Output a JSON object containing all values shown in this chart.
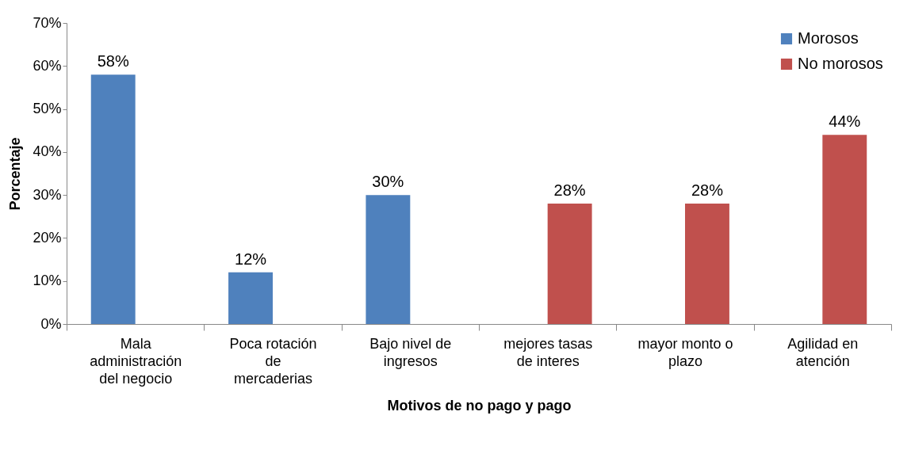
{
  "chart_data": {
    "type": "bar",
    "xlabel": "Motivos de no pago y pago",
    "ylabel": "Porcentaje",
    "categories": [
      "Mala administración del negocio",
      "Poca rotación de mercaderias",
      "Bajo nivel de ingresos",
      "mejores tasas de interes",
      "mayor monto o plazo",
      "Agilidad en atención"
    ],
    "series": [
      {
        "name": "Morosos",
        "color": "#4f81bd",
        "values": [
          58,
          12,
          30,
          null,
          null,
          null
        ],
        "value_labels": [
          "58%",
          "12%",
          "30%",
          null,
          null,
          null
        ]
      },
      {
        "name": "No morosos",
        "color": "#c0504d",
        "values": [
          null,
          null,
          null,
          28,
          28,
          44
        ],
        "value_labels": [
          null,
          null,
          null,
          "28%",
          "28%",
          "44%"
        ]
      }
    ],
    "ylim": [
      0,
      70
    ],
    "yticks": [
      {
        "value": 0,
        "label": "0%"
      },
      {
        "value": 10,
        "label": "10%"
      },
      {
        "value": 20,
        "label": "20%"
      },
      {
        "value": 30,
        "label": "30%"
      },
      {
        "value": 40,
        "label": "40%"
      },
      {
        "value": 50,
        "label": "50%"
      },
      {
        "value": 60,
        "label": "60%"
      },
      {
        "value": 70,
        "label": "70%"
      }
    ],
    "grid": false,
    "legend": "top right"
  }
}
